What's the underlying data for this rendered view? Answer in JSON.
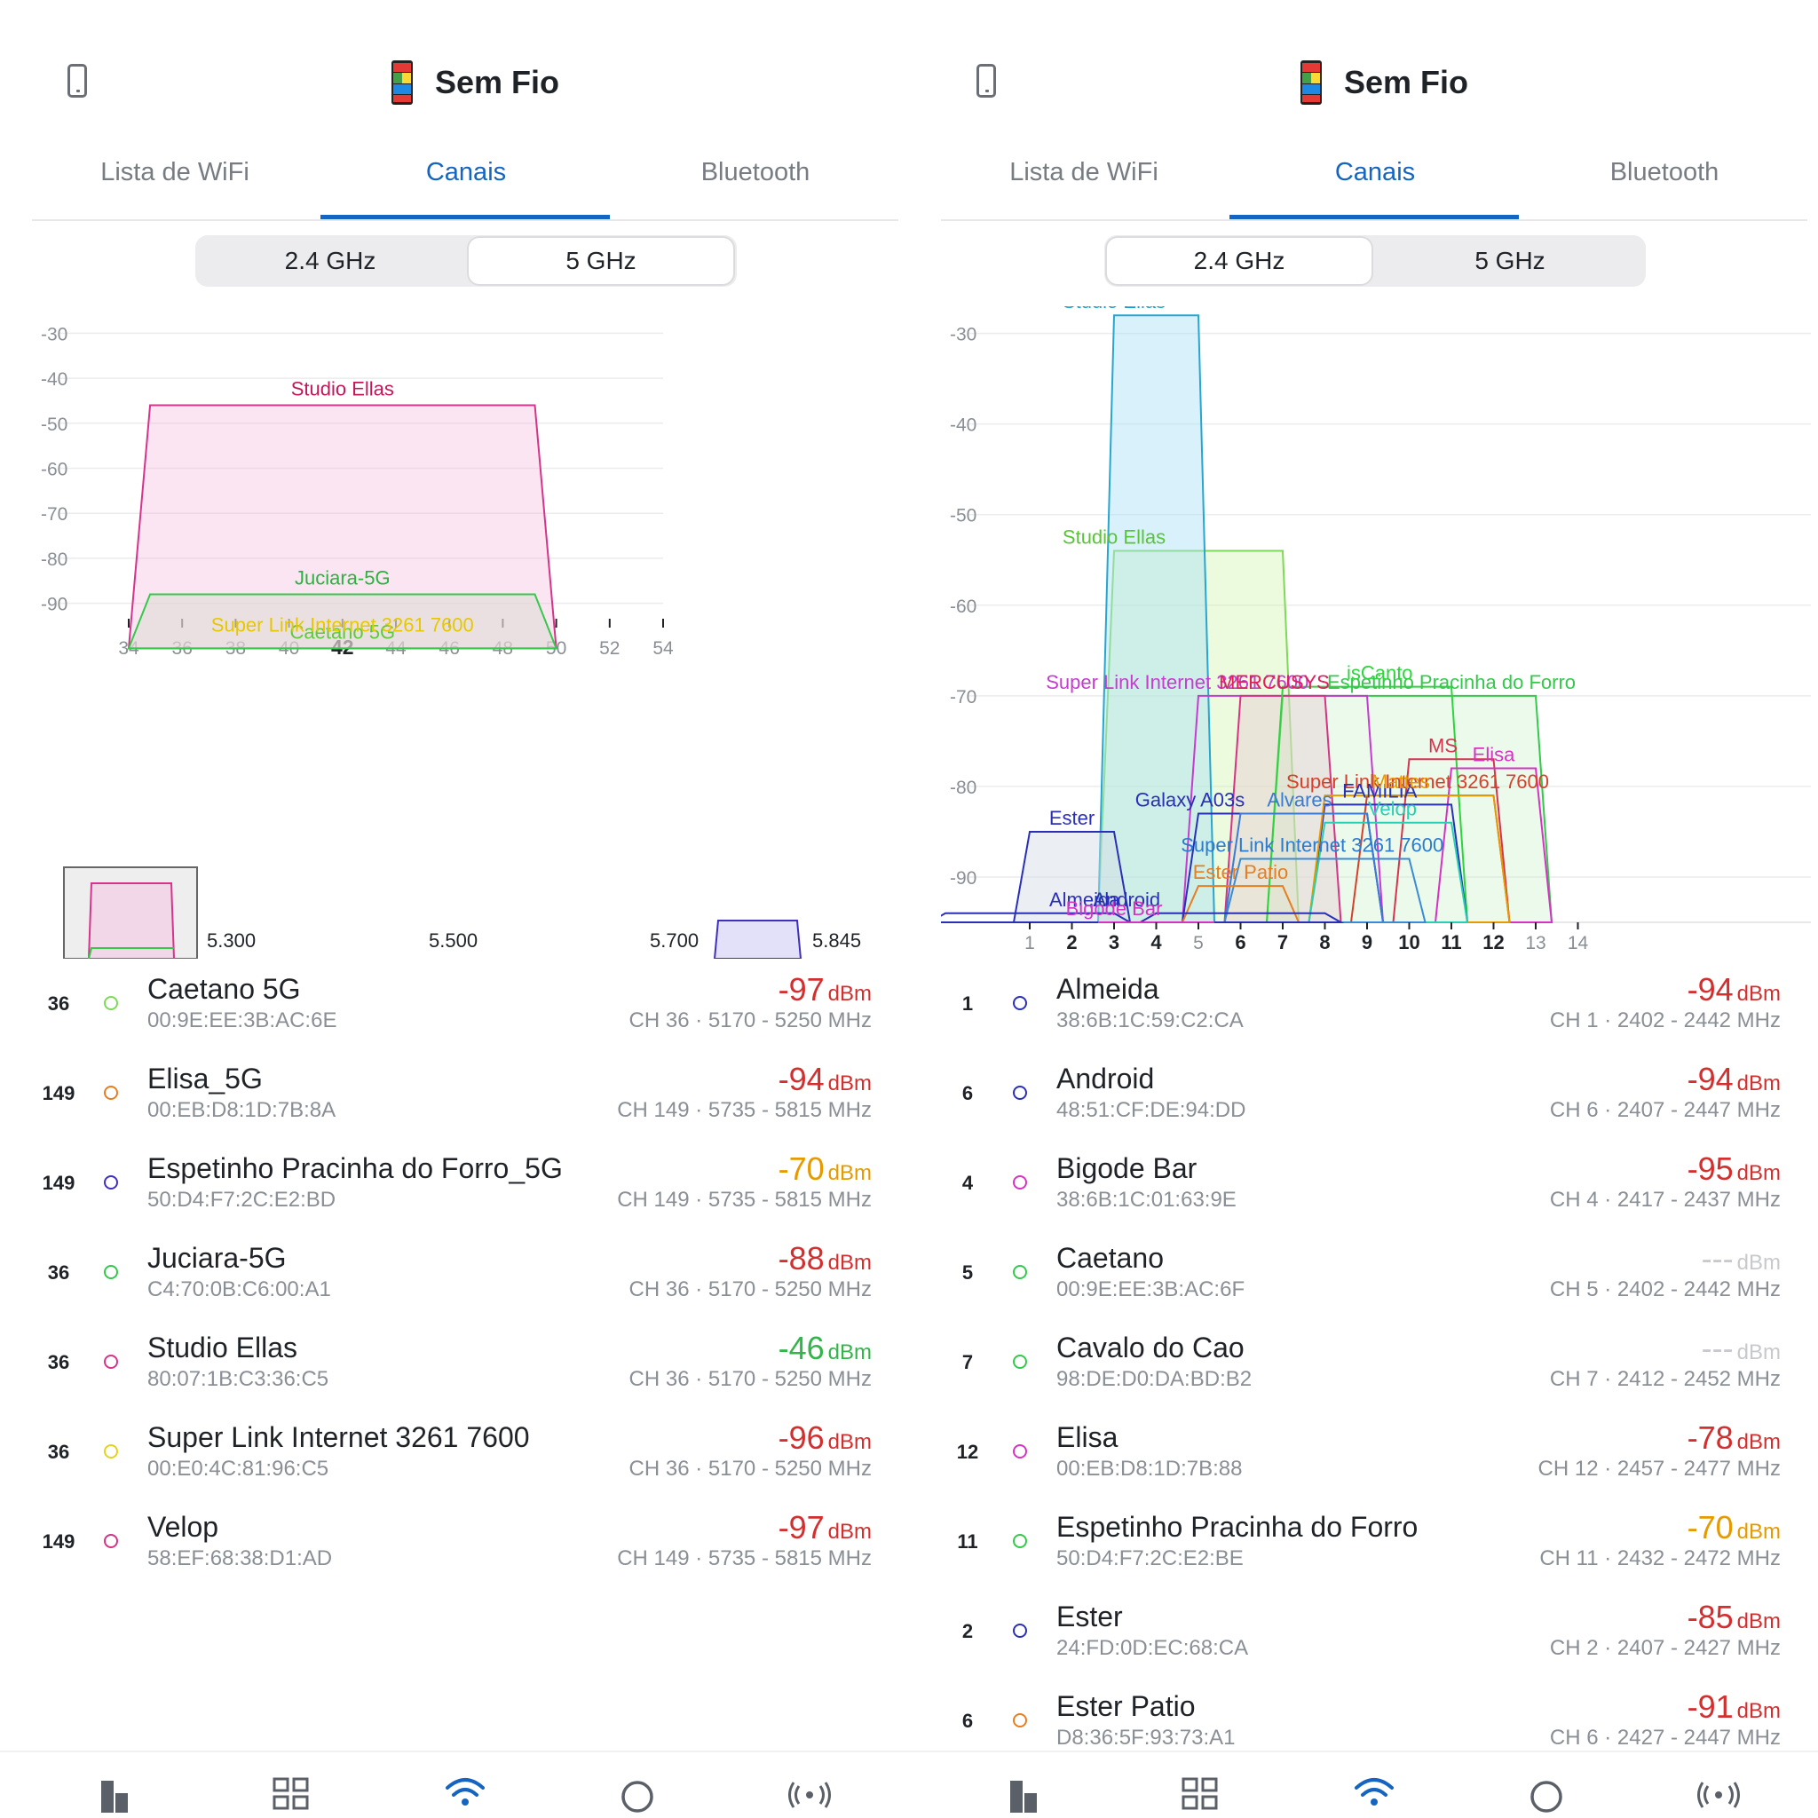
{
  "colors": {
    "accent": "#1565c0",
    "red": "#d32f2f",
    "orange": "#e59b00",
    "green": "#34b44a",
    "disabled": "#c7c9cc"
  },
  "screens": [
    {
      "header": {
        "title": "Sem Fio"
      },
      "tabs": [
        {
          "label": "Lista de WiFi"
        },
        {
          "label": "Canais"
        },
        {
          "label": "Bluetooth"
        }
      ],
      "active_tab": "Canais",
      "band_selector": {
        "options": [
          "2.4 GHz",
          "5 GHz"
        ],
        "selected": "5 GHz"
      },
      "freq_strip": {
        "labels": [
          "5.300",
          "5.500",
          "5.700",
          "5.845"
        ]
      },
      "networks": [
        {
          "channel": "36",
          "ssid": "Caetano 5G",
          "mac": "00:9E:EE:3B:AC:6E",
          "dbm": "-97",
          "unit": "dBm",
          "info": "CH 36 · 5170 - 5250 MHz",
          "level": "red",
          "dot": "#7ed957"
        },
        {
          "channel": "149",
          "ssid": "Elisa_5G",
          "mac": "00:EB:D8:1D:7B:8A",
          "dbm": "-94",
          "unit": "dBm",
          "info": "CH 149 · 5735 - 5815 MHz",
          "level": "red",
          "dot": "#e67e22"
        },
        {
          "channel": "149",
          "ssid": "Espetinho Pracinha do Forro_5G",
          "mac": "50:D4:F7:2C:E2:BD",
          "dbm": "-70",
          "unit": "dBm",
          "info": "CH 149 · 5735 - 5815 MHz",
          "level": "orange",
          "dot": "#3f2fc1"
        },
        {
          "channel": "36",
          "ssid": "Juciara-5G",
          "mac": "C4:70:0B:C6:00:A1",
          "dbm": "-88",
          "unit": "dBm",
          "info": "CH 36 · 5170 - 5250 MHz",
          "level": "red",
          "dot": "#34c94b"
        },
        {
          "channel": "36",
          "ssid": "Studio Ellas",
          "mac": "80:07:1B:C3:36:C5",
          "dbm": "-46",
          "unit": "dBm",
          "info": "CH 36 · 5170 - 5250 MHz",
          "level": "green",
          "dot": "#d6338a"
        },
        {
          "channel": "36",
          "ssid": "Super Link Internet 3261 7600",
          "mac": "00:E0:4C:81:96:C5",
          "dbm": "-96",
          "unit": "dBm",
          "info": "CH 36 · 5170 - 5250 MHz",
          "level": "red",
          "dot": "#e6d21c"
        },
        {
          "channel": "149",
          "ssid": "Velop",
          "mac": "58:EF:68:38:D1:AD",
          "dbm": "-97",
          "unit": "dBm",
          "info": "CH 149 · 5735 - 5815 MHz",
          "level": "red",
          "dot": "#d63384"
        }
      ],
      "chart_data": {
        "type": "area",
        "xlabel": "",
        "ylabel": "",
        "x_ticks": [
          "34",
          "36",
          "38",
          "40",
          "42",
          "44",
          "46",
          "48",
          "50",
          "52",
          "54"
        ],
        "x_bold": "42",
        "y_ticks": [
          "-30",
          "-40",
          "-50",
          "-60",
          "-70",
          "-80",
          "-90"
        ],
        "ylim": [
          -95,
          -25
        ],
        "xlim": [
          34,
          54
        ],
        "grid": true,
        "series": [
          {
            "name": "Studio Ellas",
            "channel": 42,
            "dbm": -46,
            "color": "#d6338a",
            "fill": "rgba(244,180,220,0.35)",
            "label_color": "#c2185b"
          },
          {
            "name": "Juciara-5G",
            "channel": 42,
            "dbm": -88,
            "color": "#34c94b",
            "fill": "rgba(220,220,210,0.55)",
            "label_color": "#2bb33f"
          },
          {
            "name": "Caetano 5G",
            "channel": 42,
            "dbm": -97,
            "color": "#7ed957",
            "fill": "rgba(0,0,0,0)",
            "label_color": "#5ec93a"
          },
          {
            "name": "Super Link Internet 3261 7600",
            "channel": 42,
            "dbm": -96,
            "color": "#e6d21c",
            "fill": "rgba(0,0,0,0)",
            "label_color": "#e6c800"
          }
        ]
      }
    },
    {
      "header": {
        "title": "Sem Fio"
      },
      "tabs": [
        {
          "label": "Lista de WiFi"
        },
        {
          "label": "Canais"
        },
        {
          "label": "Bluetooth"
        }
      ],
      "active_tab": "Canais",
      "band_selector": {
        "options": [
          "2.4 GHz",
          "5 GHz"
        ],
        "selected": "2.4 GHz"
      },
      "networks": [
        {
          "channel": "1",
          "ssid": "Almeida",
          "mac": "38:6B:1C:59:C2:CA",
          "dbm": "-94",
          "unit": "dBm",
          "info": "CH 1 · 2402 - 2442 MHz",
          "level": "red",
          "dot": "#2a2fb8"
        },
        {
          "channel": "6",
          "ssid": "Android",
          "mac": "48:51:CF:DE:94:DD",
          "dbm": "-94",
          "unit": "dBm",
          "info": "CH 6 · 2407 - 2447 MHz",
          "level": "red",
          "dot": "#2a2fb8"
        },
        {
          "channel": "4",
          "ssid": "Bigode Bar",
          "mac": "38:6B:1C:01:63:9E",
          "dbm": "-95",
          "unit": "dBm",
          "info": "CH 4 · 2417 - 2437 MHz",
          "level": "red",
          "dot": "#d633c5"
        },
        {
          "channel": "5",
          "ssid": "Caetano",
          "mac": "00:9E:EE:3B:AC:6F",
          "dbm": "---",
          "unit": "dBm",
          "info": "CH 5 · 2402 - 2442 MHz",
          "level": "disabled",
          "dot": "#34c94b"
        },
        {
          "channel": "7",
          "ssid": "Cavalo do Cao",
          "mac": "98:DE:D0:DA:BD:B2",
          "dbm": "---",
          "unit": "dBm",
          "info": "CH 7 · 2412 - 2452 MHz",
          "level": "disabled",
          "dot": "#34c94b"
        },
        {
          "channel": "12",
          "ssid": "Elisa",
          "mac": "00:EB:D8:1D:7B:88",
          "dbm": "-78",
          "unit": "dBm",
          "info": "CH 12 · 2457 - 2477 MHz",
          "level": "red",
          "dot": "#d633c5"
        },
        {
          "channel": "11",
          "ssid": "Espetinho Pracinha do Forro",
          "mac": "50:D4:F7:2C:E2:BE",
          "dbm": "-70",
          "unit": "dBm",
          "info": "CH 11 · 2432 - 2472 MHz",
          "level": "orange",
          "dot": "#34c94b"
        },
        {
          "channel": "2",
          "ssid": "Ester",
          "mac": "24:FD:0D:EC:68:CA",
          "dbm": "-85",
          "unit": "dBm",
          "info": "CH 2 · 2407 - 2427 MHz",
          "level": "red",
          "dot": "#2a2fb8"
        },
        {
          "channel": "6",
          "ssid": "Ester Patio",
          "mac": "D8:36:5F:93:73:A1",
          "dbm": "-91",
          "unit": "dBm",
          "info": "CH 6 · 2427 - 2447 MHz",
          "level": "red",
          "dot": "#e67e22"
        }
      ],
      "chart_data": {
        "type": "area",
        "xlabel": "",
        "ylabel": "",
        "x_ticks": [
          "1",
          "2",
          "3",
          "4",
          "5",
          "6",
          "7",
          "8",
          "9",
          "10",
          "11",
          "12",
          "13",
          "14"
        ],
        "x_bold": [
          "2",
          "3",
          "4",
          "6",
          "7",
          "8",
          "9",
          "10",
          "11",
          "12"
        ],
        "y_ticks": [
          "-30",
          "-40",
          "-50",
          "-60",
          "-70",
          "-80",
          "-90"
        ],
        "ylim": [
          -95,
          -27
        ],
        "xlim": [
          -1,
          15
        ],
        "grid": true,
        "series": [
          {
            "name": "Studio Ellas",
            "from": 3,
            "to": 7,
            "dbm": -54,
            "color": "#7ed957",
            "fill": "rgba(200,240,160,0.35)",
            "label_color": "#58c634",
            "label_x": 3
          },
          {
            "name": "Studio Ellas",
            "from": 3,
            "to": 5,
            "dbm": -28,
            "color": "#26a6d1",
            "fill": "rgba(170,225,245,0.45)",
            "label_color": "#1aa0d0",
            "label_x": 3
          },
          {
            "name": "Espetinho Pracinha do Forro",
            "from": 7,
            "to": 13,
            "dbm": -70,
            "color": "#34c94b",
            "fill": "rgba(200,240,200,0.35)",
            "label_color": "#34c94b",
            "label_x": 11
          },
          {
            "name": "Super Link Internet 3261 7600",
            "from": 5,
            "to": 9,
            "dbm": -70,
            "color": "#c63bd1",
            "fill": "rgba(0,0,0,0)",
            "label_color": "#c63bd1",
            "label_x": 4.5
          },
          {
            "name": "MERCUSYS",
            "from": 6,
            "to": 8,
            "dbm": -70,
            "color": "#d63384",
            "fill": "rgba(230,200,210,0.4)",
            "label_color": "#e01e5a",
            "label_x": 6.8
          },
          {
            "name": "isCanto",
            "from": 7,
            "to": 11,
            "dbm": -69,
            "color": "#2dd43e",
            "fill": "rgba(0,0,0,0)",
            "label_color": "#2dd43e",
            "label_x": 9.3
          },
          {
            "name": "MS",
            "from": 10,
            "to": 12,
            "dbm": -77,
            "color": "#d6334f",
            "fill": "rgba(0,0,0,0)",
            "label_color": "#d6334f",
            "label_x": 10.8
          },
          {
            "name": "Elisa",
            "from": 11,
            "to": 13,
            "dbm": -78,
            "color": "#d633c5",
            "fill": "rgba(0,0,0,0)",
            "label_color": "#d633c5",
            "label_x": 12
          },
          {
            "name": "Super Link Internet 3261 7600",
            "from": 9,
            "to": 12,
            "dbm": -81,
            "color": "#d6402a",
            "fill": "rgba(0,0,0,0)",
            "label_color": "#d6402a",
            "label_x": 10.2
          },
          {
            "name": "FAMILIA",
            "from": 8,
            "to": 11,
            "dbm": -82,
            "color": "#2a2fb8",
            "fill": "rgba(0,0,0,0)",
            "label_color": "#2a2fb8",
            "label_x": 9.3
          },
          {
            "name": "Mattes",
            "from": 8,
            "to": 12,
            "dbm": -81,
            "color": "#e59b00",
            "fill": "rgba(0,0,0,0)",
            "label_color": "#e59b00",
            "label_x": 9.8
          },
          {
            "name": "Velop",
            "from": 8,
            "to": 11,
            "dbm": -84,
            "color": "#26d1b3",
            "fill": "rgba(0,0,0,0)",
            "label_color": "#26d1b3",
            "label_x": 9.6
          },
          {
            "name": "Galaxy A03s",
            "from": 5,
            "to": 9,
            "dbm": -83,
            "color": "#2a2fb8",
            "fill": "rgba(0,0,0,0)",
            "label_color": "#2a2fb8",
            "label_x": 4.8
          },
          {
            "name": "Alvares",
            "from": 6,
            "to": 9,
            "dbm": -83,
            "color": "#3a7bd5",
            "fill": "rgba(0,0,0,0)",
            "label_color": "#3a7bd5",
            "label_x": 7.4
          },
          {
            "name": "Super Link Internet 3261 7600",
            "from": 6,
            "to": 10,
            "dbm": -88,
            "color": "#3a8bd5",
            "fill": "rgba(0,0,0,0)",
            "label_color": "#2b7bd0",
            "label_x": 7.7
          },
          {
            "name": "Ester",
            "from": 1,
            "to": 3,
            "dbm": -85,
            "color": "#2a2fb8",
            "fill": "rgba(210,220,230,0.45)",
            "label_color": "#2a2fb8",
            "label_x": 2
          },
          {
            "name": "Ester Patio",
            "from": 5,
            "to": 7,
            "dbm": -91,
            "color": "#e67e22",
            "fill": "rgba(0,0,0,0)",
            "label_color": "#e67e22",
            "label_x": 6
          },
          {
            "name": "Almeida",
            "from": -1,
            "to": 3,
            "dbm": -94,
            "color": "#2a2fb8",
            "fill": "rgba(0,0,0,0)",
            "label_color": "#2a2fb8",
            "label_x": 2.3
          },
          {
            "name": "Android",
            "from": 4,
            "to": 8,
            "dbm": -94,
            "color": "#2a2fb8",
            "fill": "rgba(0,0,0,0)",
            "label_color": "#2a2fb8",
            "label_x": 3.3
          },
          {
            "name": "Bigode Bar",
            "from": 3,
            "to": 5,
            "dbm": -95,
            "color": "#d633c5",
            "fill": "rgba(0,0,0,0)",
            "label_color": "#d633c5",
            "label_x": 3
          }
        ]
      }
    }
  ]
}
